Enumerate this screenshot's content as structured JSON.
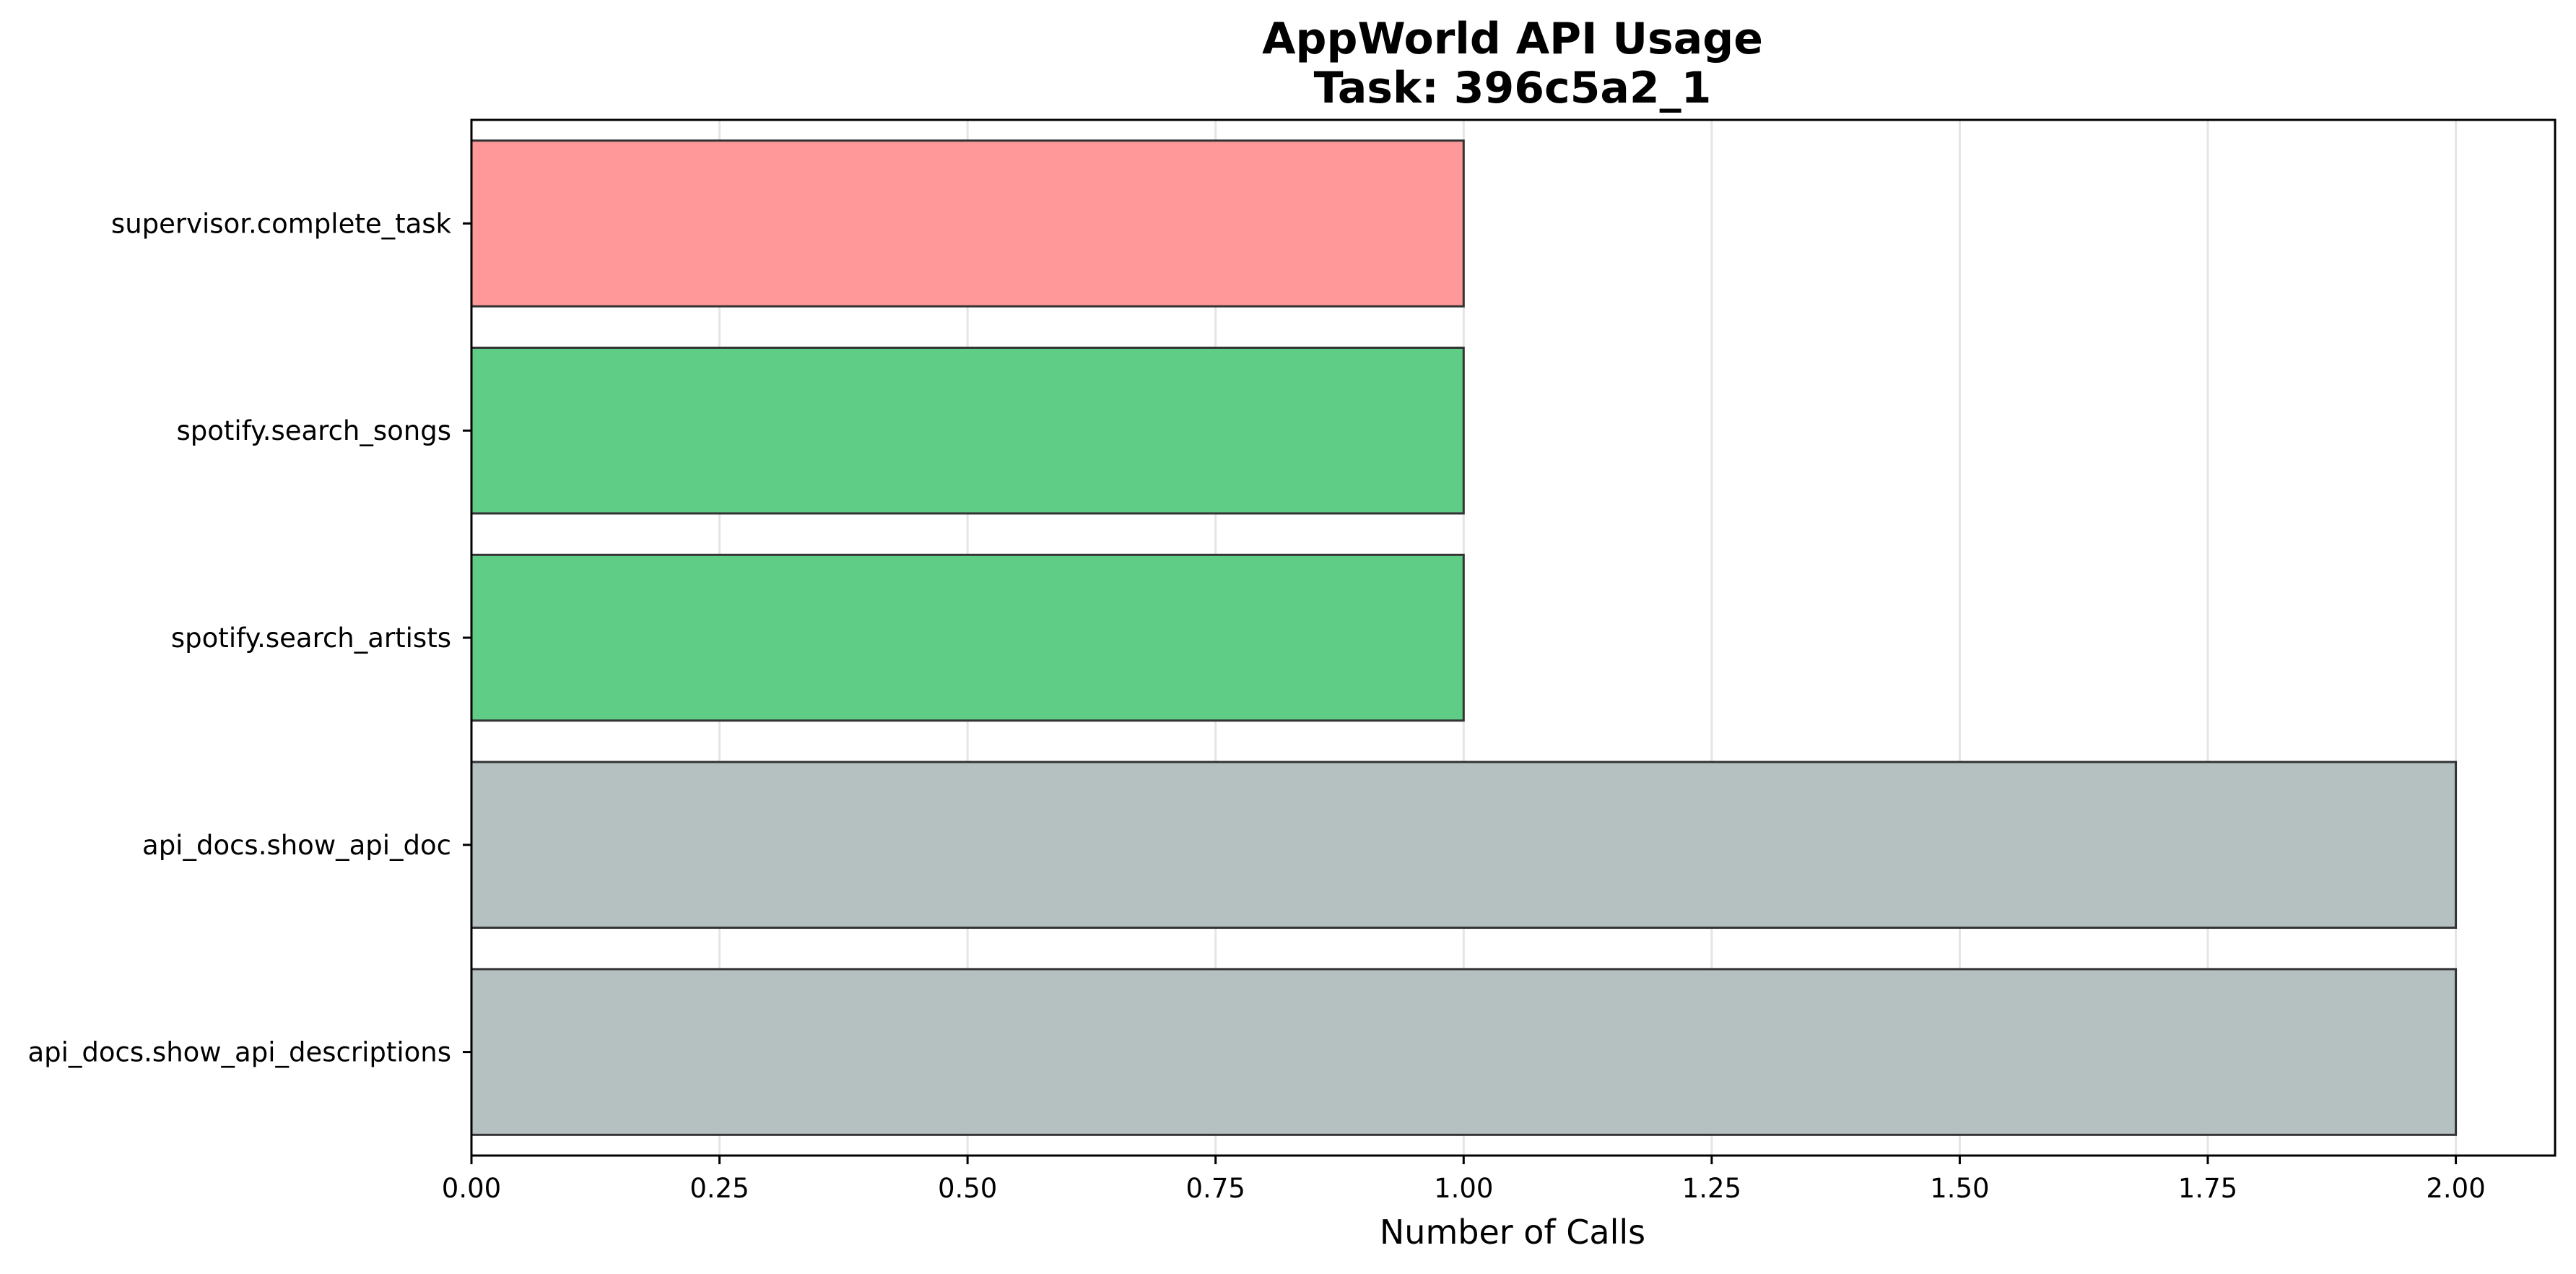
{
  "chart_data": {
    "type": "bar",
    "orientation": "horizontal",
    "title": "AppWorld API Usage",
    "subtitle": "Task: 396c5a2_1",
    "xlabel": "Number of Calls",
    "ylabel": "",
    "categories": [
      "supervisor.complete_task",
      "spotify.search_songs",
      "spotify.search_artists",
      "api_docs.show_api_doc",
      "api_docs.show_api_descriptions"
    ],
    "values": [
      1,
      1,
      1,
      2,
      2
    ],
    "bar_colors": [
      "#ff9999",
      "#5fcd86",
      "#5fcd86",
      "#b5c0c0",
      "#b5c0c0"
    ],
    "xlim": [
      0,
      2.1
    ],
    "xticks": [
      "0.00",
      "0.25",
      "0.50",
      "0.75",
      "1.00",
      "1.25",
      "1.50",
      "1.75",
      "2.00"
    ],
    "grid": "vertical",
    "legend": "none"
  }
}
